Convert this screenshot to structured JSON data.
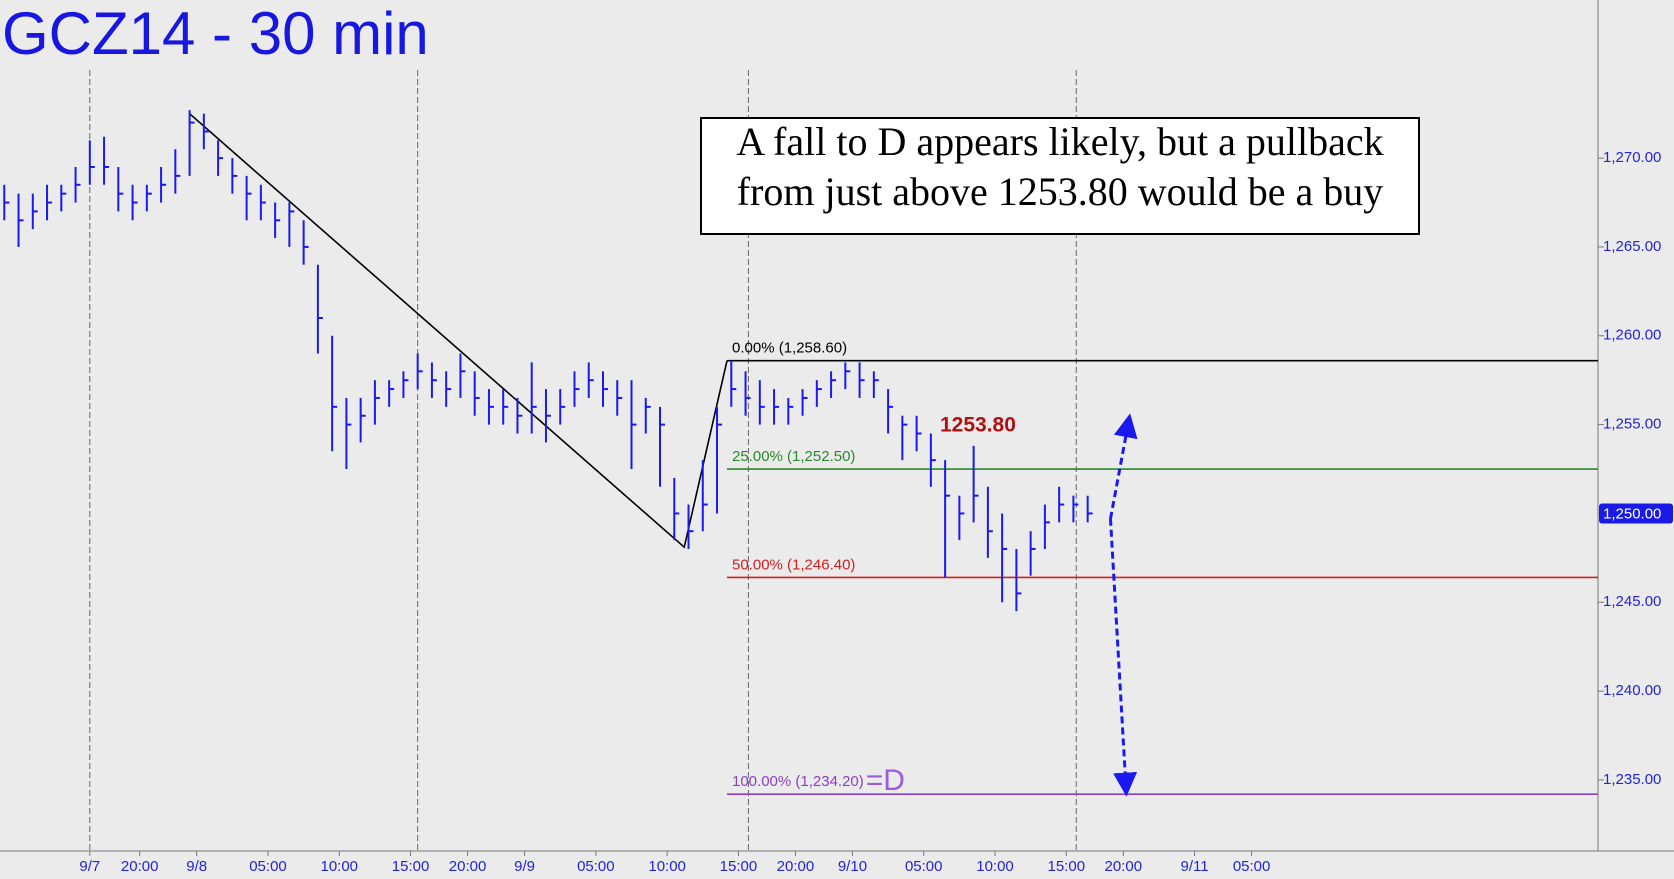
{
  "chart_data": {
    "type": "ohlc",
    "title": "GCZ14 - 30 min",
    "annotation": [
      "A fall to D appears likely, but a pullback",
      "from just above 1253.80 would be a buy"
    ],
    "color": "#1a1af0",
    "xlim": [
      -6.3,
      105.8
    ],
    "ylim": [
      1231.0,
      1278.9
    ],
    "xticks": [
      {
        "value": 0,
        "label": "9/7"
      },
      {
        "value": 3.5,
        "label": "20:00"
      },
      {
        "value": 7.5,
        "label": "9/8"
      },
      {
        "value": 12.5,
        "label": "05:00"
      },
      {
        "value": 17.5,
        "label": "10:00"
      },
      {
        "value": 22.5,
        "label": "15:00"
      },
      {
        "value": 26.5,
        "label": "20:00"
      },
      {
        "value": 30.5,
        "label": "9/9"
      },
      {
        "value": 35.5,
        "label": "05:00"
      },
      {
        "value": 40.5,
        "label": "10:00"
      },
      {
        "value": 45.5,
        "label": "15:00"
      },
      {
        "value": 49.5,
        "label": "20:00"
      },
      {
        "value": 53.5,
        "label": "9/10"
      },
      {
        "value": 58.5,
        "label": "05:00"
      },
      {
        "value": 63.5,
        "label": "10:00"
      },
      {
        "value": 68.5,
        "label": "15:00"
      },
      {
        "value": 72.5,
        "label": "20:00"
      },
      {
        "value": 77.5,
        "label": "9/11"
      },
      {
        "value": 81.5,
        "label": "05:00"
      }
    ],
    "yticks": [
      {
        "value": 1235,
        "label": "1,235.00"
      },
      {
        "value": 1240,
        "label": "1,240.00"
      },
      {
        "value": 1245,
        "label": "1,245.00"
      },
      {
        "value": 1250,
        "label": "1,250.00"
      },
      {
        "value": 1255,
        "label": "1,255.00"
      },
      {
        "value": 1260,
        "label": "1,260.00"
      },
      {
        "value": 1265,
        "label": "1,265.00"
      },
      {
        "value": 1270,
        "label": "1,270.00"
      }
    ],
    "session_lines": [
      0,
      23,
      46.2,
      69.2
    ],
    "x": [
      -6,
      -5,
      -4,
      -3,
      -2,
      -1,
      0,
      1,
      2,
      3,
      4,
      5,
      6,
      7,
      8,
      9,
      10,
      11,
      12,
      13,
      14,
      15,
      16,
      17,
      18,
      19,
      20,
      21,
      22,
      23,
      24,
      25,
      26,
      27,
      28,
      29,
      30,
      31,
      32,
      33,
      34,
      35,
      36,
      37,
      38,
      39,
      40,
      41,
      42,
      43,
      44,
      45,
      46,
      47,
      48,
      49,
      50,
      51,
      52,
      53,
      54,
      55,
      56,
      57,
      58,
      59,
      60,
      61,
      62,
      63,
      64,
      65,
      66,
      67,
      68,
      69,
      70
    ],
    "high": [
      1268.5,
      1268,
      1268,
      1268.5,
      1268.5,
      1269.5,
      1271,
      1271.2,
      1269.5,
      1268.5,
      1268.5,
      1269.5,
      1270.5,
      1272.7,
      1272.5,
      1271,
      1270,
      1269,
      1268.5,
      1267.5,
      1267.5,
      1266.5,
      1264,
      1260,
      1256.5,
      1256.5,
      1257.5,
      1257.5,
      1258,
      1259,
      1258.5,
      1258,
      1259,
      1258,
      1257,
      1257,
      1256.5,
      1258.5,
      1257,
      1257,
      1258,
      1258.5,
      1258,
      1257.5,
      1257.5,
      1256.5,
      1256,
      1252,
      1250.5,
      1253,
      1256,
      1258.6,
      1258,
      1257.5,
      1257,
      1256.5,
      1257,
      1257.5,
      1258,
      1258.5,
      1258.5,
      1258,
      1257,
      1255.5,
      1255.5,
      1254.5,
      1253,
      1251,
      1253.8,
      1251.5,
      1250,
      1248,
      1249,
      1250.5,
      1251.5,
      1251,
      1251
    ],
    "low": [
      1266.5,
      1265,
      1266,
      1266.5,
      1267,
      1267.5,
      1268.5,
      1268.5,
      1267,
      1266.5,
      1267,
      1267.5,
      1268,
      1269,
      1270.5,
      1269,
      1268,
      1266.5,
      1266.5,
      1265.5,
      1265,
      1264,
      1259,
      1253.5,
      1252.5,
      1254,
      1255,
      1256,
      1256.5,
      1257,
      1256.5,
      1256,
      1256.5,
      1255.5,
      1255,
      1255,
      1254.5,
      1254.5,
      1254,
      1255,
      1256,
      1256.5,
      1256,
      1255.5,
      1252.5,
      1254.5,
      1251.5,
      1248.5,
      1248,
      1249,
      1250,
      1256,
      1255.5,
      1255,
      1255,
      1255,
      1255.5,
      1256,
      1256.5,
      1257,
      1256.5,
      1256.5,
      1254.5,
      1253,
      1253.5,
      1251.5,
      1246.4,
      1248.5,
      1249.5,
      1247.5,
      1245,
      1244.5,
      1246.5,
      1248,
      1249.5,
      1249.5,
      1249.5
    ],
    "close": [
      1267.5,
      1266.5,
      1267,
      1267.5,
      1268,
      1268.5,
      1269.5,
      1269.5,
      1268,
      1267.5,
      1268,
      1268.5,
      1269,
      1272,
      1271.5,
      1270,
      1269,
      1268,
      1267.5,
      1266.5,
      1267,
      1265,
      1261,
      1256,
      1255,
      1255.5,
      1256.5,
      1257,
      1257.5,
      1258,
      1257.5,
      1257,
      1258,
      1256.5,
      1256,
      1256,
      1255.5,
      1256,
      1255.5,
      1256,
      1257,
      1257.5,
      1257,
      1256.5,
      1255,
      1256,
      1255,
      1250,
      1249,
      1250.5,
      1255,
      1257,
      1256.5,
      1256,
      1256,
      1256,
      1256.5,
      1257,
      1257.5,
      1258,
      1257.5,
      1257.5,
      1256,
      1255,
      1254.5,
      1253,
      1251,
      1250,
      1251,
      1249,
      1248,
      1245.5,
      1248,
      1249.5,
      1250.5,
      1250.5,
      1250
    ],
    "levels_start": 44.7,
    "levels": [
      {
        "label": "0.00% (1,258.60)",
        "value": 1258.6,
        "color": "#000000"
      },
      {
        "label": "25.00% (1,252.50)",
        "value": 1252.5,
        "color": "#2a8a2a"
      },
      {
        "label": "50.00% (1,246.40)",
        "value": 1246.4,
        "color": "#d42020"
      },
      {
        "label": "100.00% (1,234.20)",
        "value": 1234.2,
        "color": "#8a3fc8",
        "suffix": "=D"
      }
    ],
    "trendline": {
      "x": [
        7,
        41.7,
        44.7
      ],
      "y": [
        1272.5,
        1248.1,
        1258.6
      ]
    },
    "callout": {
      "label": "1253.80",
      "value": 1253.8,
      "color": "#b01010"
    },
    "projection": [
      {
        "x": [
          71.6,
          72.9
        ],
        "y": [
          1249.7,
          1255.3
        ]
      },
      {
        "x": [
          71.6,
          72.7
        ],
        "y": [
          1249.7,
          1234.4
        ]
      }
    ],
    "last_price": {
      "value": 1250,
      "label": "1,250.00"
    }
  }
}
